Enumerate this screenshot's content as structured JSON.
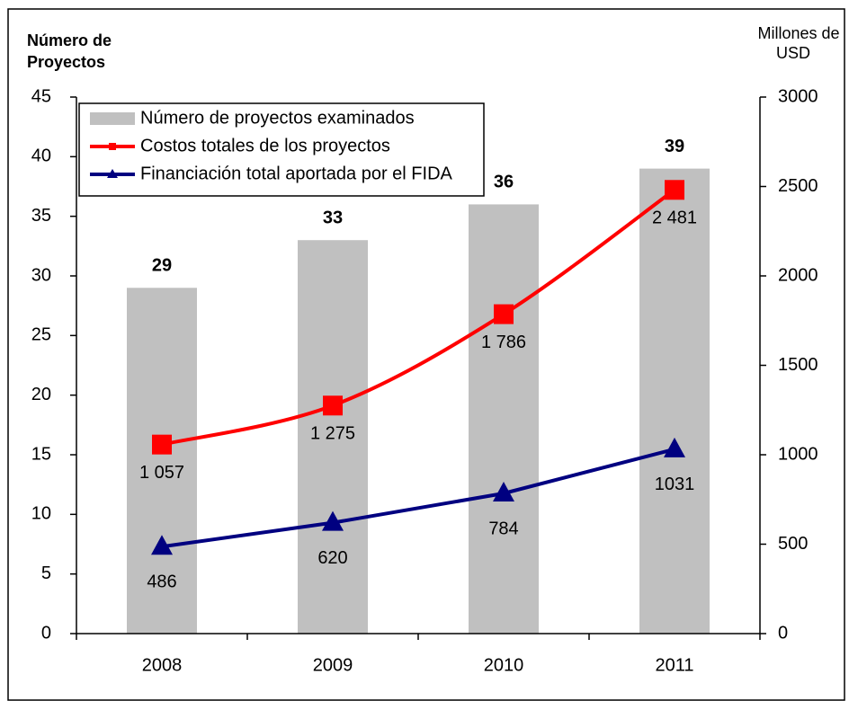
{
  "chart_data": {
    "type": "bar_line",
    "y_label": [
      "Número de",
      "Proyectos"
    ],
    "y2_label": [
      "Millones de",
      "USD"
    ],
    "categories": [
      "2008",
      "2009",
      "2010",
      "2011"
    ],
    "ylim": [
      0,
      45
    ],
    "yticks": [
      0,
      5,
      10,
      15,
      20,
      25,
      30,
      35,
      40,
      45
    ],
    "y2lim": [
      0,
      3000
    ],
    "y2ticks": [
      0,
      500,
      1000,
      1500,
      2000,
      2500,
      3000
    ],
    "legend": "top-left",
    "series": [
      {
        "name": "Número de proyectos examinados",
        "kind": "bar",
        "color": "#c0c0c0",
        "values": [
          29,
          33,
          36,
          39
        ]
      },
      {
        "name": "Costos totales de los proyectos",
        "kind": "line",
        "marker": "square",
        "axis": "y2",
        "color": "#ff0000",
        "values": [
          1057,
          1275,
          1786,
          2481
        ],
        "value_labels": [
          "1 057",
          "1 275",
          "1 786",
          "2 481"
        ]
      },
      {
        "name": "Financiación total aportada por el FIDA",
        "kind": "line",
        "marker": "triangle",
        "axis": "y2",
        "color": "#000080",
        "values": [
          486,
          620,
          784,
          1031
        ]
      }
    ]
  }
}
